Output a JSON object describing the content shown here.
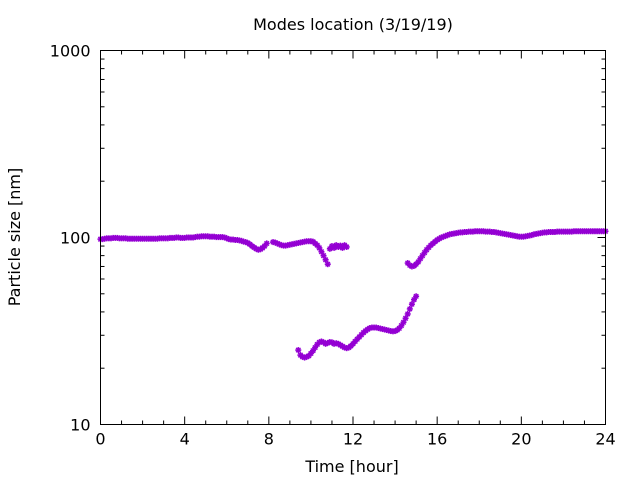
{
  "chart_data": {
    "type": "scatter",
    "title": "Modes location (3/19/19)",
    "xlabel": "Time [hour]",
    "ylabel": "Particle size [nm]",
    "xlim": [
      0,
      24
    ],
    "ylim": [
      10,
      1000
    ],
    "yscale": "log",
    "x_ticks": [
      0,
      4,
      8,
      12,
      16,
      20,
      24
    ],
    "x_tick_labels": [
      "0",
      "4",
      "8",
      "12",
      "16",
      "20",
      "24"
    ],
    "y_ticks": [
      10,
      100,
      1000
    ],
    "y_tick_labels": [
      "10",
      "100",
      "1000"
    ],
    "grid": false,
    "legend": "none",
    "marker_color": "#9400d3",
    "series": [
      {
        "points": [
          [
            0.0,
            98
          ],
          [
            0.1,
            98
          ],
          [
            0.2,
            98.5
          ],
          [
            0.3,
            99
          ],
          [
            0.4,
            99
          ],
          [
            0.5,
            99
          ],
          [
            0.6,
            99.5
          ],
          [
            0.7,
            99.5
          ],
          [
            0.8,
            99.5
          ],
          [
            0.9,
            99
          ],
          [
            1.0,
            99
          ],
          [
            1.1,
            99
          ],
          [
            1.2,
            99
          ],
          [
            1.3,
            98.5
          ],
          [
            1.4,
            98.5
          ],
          [
            1.5,
            98.5
          ],
          [
            1.6,
            98.5
          ],
          [
            1.7,
            98.5
          ],
          [
            1.8,
            98.5
          ],
          [
            1.9,
            98.5
          ],
          [
            2.0,
            98.5
          ],
          [
            2.1,
            98.5
          ],
          [
            2.2,
            98.5
          ],
          [
            2.3,
            98.5
          ],
          [
            2.4,
            98.5
          ],
          [
            2.5,
            98.5
          ],
          [
            2.6,
            98.5
          ],
          [
            2.7,
            98.5
          ],
          [
            2.8,
            99
          ],
          [
            2.9,
            99
          ],
          [
            3.0,
            99
          ],
          [
            3.1,
            99
          ],
          [
            3.2,
            99
          ],
          [
            3.3,
            99.5
          ],
          [
            3.4,
            99.5
          ],
          [
            3.5,
            99.5
          ],
          [
            3.6,
            100
          ],
          [
            3.7,
            100
          ],
          [
            3.8,
            99.5
          ],
          [
            3.9,
            99.5
          ],
          [
            4.0,
            99.5
          ],
          [
            4.1,
            100
          ],
          [
            4.2,
            100
          ],
          [
            4.3,
            100
          ],
          [
            4.4,
            100
          ],
          [
            4.5,
            100.5
          ],
          [
            4.6,
            101
          ],
          [
            4.7,
            101
          ],
          [
            4.8,
            101.5
          ],
          [
            4.9,
            101.5
          ],
          [
            5.0,
            101.5
          ],
          [
            5.1,
            101.5
          ],
          [
            5.2,
            101
          ],
          [
            5.3,
            101
          ],
          [
            5.4,
            101
          ],
          [
            5.5,
            100.5
          ],
          [
            5.6,
            100.5
          ],
          [
            5.7,
            100.5
          ],
          [
            5.8,
            100.5
          ],
          [
            5.9,
            100
          ],
          [
            6.0,
            99
          ],
          [
            6.1,
            98
          ],
          [
            6.2,
            97.5
          ],
          [
            6.3,
            97.5
          ],
          [
            6.4,
            97
          ],
          [
            6.5,
            97
          ],
          [
            6.6,
            96.5
          ],
          [
            6.7,
            96
          ],
          [
            6.8,
            95
          ],
          [
            6.9,
            94.5
          ],
          [
            7.0,
            93.5
          ],
          [
            7.1,
            92
          ],
          [
            7.2,
            90
          ],
          [
            7.3,
            88.5
          ],
          [
            7.4,
            87
          ],
          [
            7.5,
            86
          ],
          [
            7.6,
            86.5
          ],
          [
            7.7,
            88
          ],
          [
            7.8,
            90
          ],
          [
            7.9,
            93
          ],
          [
            8.2,
            94.5
          ],
          [
            8.3,
            94
          ],
          [
            8.4,
            93
          ],
          [
            8.5,
            92
          ],
          [
            8.6,
            91
          ],
          [
            8.7,
            90.5
          ],
          [
            8.8,
            90.5
          ],
          [
            8.9,
            91
          ],
          [
            9.0,
            91.5
          ],
          [
            9.1,
            92
          ],
          [
            9.2,
            92.5
          ],
          [
            9.3,
            93
          ],
          [
            9.4,
            93.5
          ],
          [
            9.5,
            94
          ],
          [
            9.6,
            94.5
          ],
          [
            9.7,
            95
          ],
          [
            9.8,
            95.5
          ],
          [
            9.9,
            95.5
          ],
          [
            10.0,
            95.5
          ],
          [
            10.1,
            95
          ],
          [
            10.2,
            93
          ],
          [
            10.3,
            91
          ],
          [
            10.4,
            88
          ],
          [
            10.5,
            84
          ],
          [
            10.6,
            80
          ],
          [
            10.7,
            76
          ],
          [
            10.8,
            72
          ],
          [
            10.9,
            87
          ],
          [
            11.0,
            90
          ],
          [
            11.1,
            88
          ],
          [
            11.2,
            91
          ],
          [
            11.3,
            89
          ],
          [
            11.4,
            90.5
          ],
          [
            11.5,
            88
          ],
          [
            11.6,
            91
          ],
          [
            11.7,
            89
          ]
        ]
      },
      {
        "points": [
          [
            9.4,
            25
          ],
          [
            9.5,
            23.5
          ],
          [
            9.6,
            23
          ],
          [
            9.7,
            22.8
          ],
          [
            9.8,
            23
          ],
          [
            9.9,
            23.3
          ],
          [
            10.0,
            24
          ],
          [
            10.1,
            24.8
          ],
          [
            10.2,
            25.8
          ],
          [
            10.3,
            26.8
          ],
          [
            10.4,
            27.5
          ],
          [
            10.5,
            27.8
          ],
          [
            10.6,
            27.5
          ],
          [
            10.7,
            27
          ],
          [
            10.8,
            27.3
          ],
          [
            10.9,
            27.6
          ],
          [
            11.0,
            27.5
          ],
          [
            11.1,
            27
          ],
          [
            11.2,
            27.2
          ],
          [
            11.3,
            27
          ],
          [
            11.4,
            26.6
          ],
          [
            11.5,
            26.2
          ],
          [
            11.6,
            25.8
          ],
          [
            11.7,
            25.6
          ],
          [
            11.8,
            25.8
          ],
          [
            11.9,
            26.3
          ],
          [
            12.0,
            27
          ],
          [
            12.1,
            27.8
          ],
          [
            12.2,
            28.6
          ],
          [
            12.3,
            29.4
          ],
          [
            12.4,
            30.2
          ],
          [
            12.5,
            31
          ],
          [
            12.6,
            31.7
          ],
          [
            12.7,
            32.3
          ],
          [
            12.8,
            32.8
          ],
          [
            12.9,
            33
          ],
          [
            13.0,
            33
          ],
          [
            13.1,
            33
          ],
          [
            13.2,
            32.8
          ],
          [
            13.3,
            32.6
          ],
          [
            13.4,
            32.4
          ],
          [
            13.5,
            32.2
          ],
          [
            13.6,
            32
          ],
          [
            13.7,
            31.8
          ],
          [
            13.8,
            31.6
          ],
          [
            13.9,
            31.5
          ],
          [
            14.0,
            31.6
          ],
          [
            14.1,
            32
          ],
          [
            14.2,
            32.7
          ],
          [
            14.3,
            33.8
          ],
          [
            14.4,
            35.2
          ],
          [
            14.5,
            37
          ],
          [
            14.6,
            39
          ],
          [
            14.7,
            41.5
          ],
          [
            14.8,
            44
          ],
          [
            14.9,
            46.5
          ],
          [
            15.0,
            48.5
          ],
          [
            14.6,
            73
          ],
          [
            14.7,
            71
          ],
          [
            14.8,
            70
          ],
          [
            14.9,
            70.5
          ],
          [
            15.0,
            72
          ],
          [
            15.1,
            74
          ],
          [
            15.2,
            77
          ],
          [
            15.3,
            80
          ],
          [
            15.4,
            83
          ],
          [
            15.5,
            86
          ],
          [
            15.6,
            88.5
          ],
          [
            15.7,
            91
          ],
          [
            15.8,
            93
          ],
          [
            15.9,
            95
          ],
          [
            16.0,
            97
          ],
          [
            16.1,
            98.5
          ],
          [
            16.2,
            100
          ],
          [
            16.3,
            101
          ],
          [
            16.4,
            102
          ],
          [
            16.5,
            103
          ],
          [
            16.6,
            104
          ],
          [
            16.7,
            104.5
          ],
          [
            16.8,
            105
          ],
          [
            16.9,
            105.5
          ],
          [
            17.0,
            106
          ],
          [
            17.1,
            106.5
          ],
          [
            17.2,
            106.5
          ],
          [
            17.3,
            107
          ],
          [
            17.4,
            107
          ],
          [
            17.5,
            107.5
          ],
          [
            17.6,
            107.5
          ],
          [
            17.7,
            107.5
          ],
          [
            17.8,
            108
          ],
          [
            17.9,
            108
          ],
          [
            18.0,
            108
          ],
          [
            18.1,
            108
          ],
          [
            18.2,
            108
          ],
          [
            18.3,
            107.5
          ],
          [
            18.4,
            107.5
          ],
          [
            18.5,
            107.5
          ],
          [
            18.6,
            107
          ],
          [
            18.7,
            107
          ],
          [
            18.8,
            106.5
          ],
          [
            18.9,
            106
          ],
          [
            19.0,
            105.5
          ],
          [
            19.1,
            105
          ],
          [
            19.2,
            104.5
          ],
          [
            19.3,
            104
          ],
          [
            19.4,
            103.5
          ],
          [
            19.5,
            103
          ],
          [
            19.6,
            102.5
          ],
          [
            19.7,
            102
          ],
          [
            19.8,
            101.5
          ],
          [
            19.9,
            101
          ],
          [
            20.0,
            101
          ],
          [
            20.1,
            101
          ],
          [
            20.2,
            101.5
          ],
          [
            20.3,
            102
          ],
          [
            20.4,
            102.5
          ],
          [
            20.5,
            103
          ],
          [
            20.6,
            104
          ],
          [
            20.7,
            104.5
          ],
          [
            20.8,
            105
          ],
          [
            20.9,
            105.5
          ],
          [
            21.0,
            106
          ],
          [
            21.1,
            106.5
          ],
          [
            21.2,
            106.5
          ],
          [
            21.3,
            107
          ],
          [
            21.4,
            107
          ],
          [
            21.5,
            107
          ],
          [
            21.6,
            107
          ],
          [
            21.7,
            107.5
          ],
          [
            21.8,
            107.5
          ],
          [
            21.9,
            107.5
          ],
          [
            22.0,
            107.5
          ],
          [
            22.1,
            107.5
          ],
          [
            22.2,
            107.5
          ],
          [
            22.3,
            107.5
          ],
          [
            22.4,
            107.5
          ],
          [
            22.5,
            108
          ],
          [
            22.6,
            108
          ],
          [
            22.7,
            108
          ],
          [
            22.8,
            108
          ],
          [
            22.9,
            108
          ],
          [
            23.0,
            108
          ],
          [
            23.1,
            108
          ],
          [
            23.2,
            108
          ],
          [
            23.3,
            108
          ],
          [
            23.4,
            108
          ],
          [
            23.5,
            108
          ],
          [
            23.6,
            108
          ],
          [
            23.7,
            108
          ],
          [
            23.8,
            108
          ],
          [
            23.9,
            108
          ],
          [
            24.0,
            108
          ]
        ]
      }
    ]
  }
}
